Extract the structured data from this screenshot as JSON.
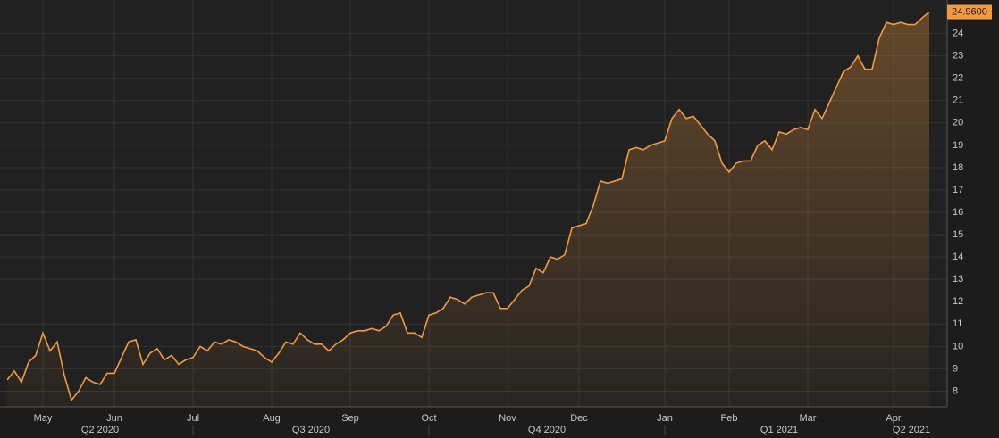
{
  "chart_data": {
    "type": "area",
    "categories": [
      null,
      null,
      null,
      null,
      null,
      "May",
      null,
      null,
      null,
      null,
      null,
      null,
      null,
      null,
      null,
      "Jun",
      null,
      null,
      null,
      null,
      null,
      null,
      null,
      null,
      null,
      null,
      "Jul",
      null,
      null,
      null,
      null,
      null,
      null,
      null,
      null,
      null,
      null,
      "Aug",
      null,
      null,
      null,
      null,
      null,
      null,
      null,
      null,
      null,
      null,
      "Sep",
      null,
      null,
      null,
      null,
      null,
      null,
      null,
      null,
      null,
      null,
      "Oct",
      null,
      null,
      null,
      null,
      null,
      null,
      null,
      null,
      null,
      null,
      "Nov",
      null,
      null,
      null,
      null,
      null,
      null,
      null,
      null,
      null,
      "Dec",
      null,
      null,
      null,
      null,
      null,
      null,
      null,
      null,
      null,
      null,
      null,
      "Jan",
      null,
      null,
      null,
      null,
      null,
      null,
      null,
      null,
      "Feb",
      null,
      null,
      null,
      null,
      null,
      null,
      null,
      null,
      null,
      null,
      "Mar",
      null,
      null,
      null,
      null,
      null,
      null,
      null,
      null,
      null,
      null,
      null,
      "Apr",
      null,
      null,
      null,
      null,
      null
    ],
    "quarters": [
      "Q2 2020",
      "Q3 2020",
      "Q4 2020",
      "Q1 2021",
      "Q2 2021"
    ],
    "series": [
      {
        "color": "#f39a3e",
        "values": [
          8.5,
          8.9,
          8.4,
          9.3,
          9.6,
          10.6,
          9.8,
          10.2,
          8.7,
          7.6,
          8.0,
          8.6,
          8.4,
          8.3,
          8.8,
          8.8,
          9.5,
          10.2,
          10.3,
          9.2,
          9.7,
          9.9,
          9.4,
          9.6,
          9.2,
          9.4,
          9.5,
          10.0,
          9.8,
          10.2,
          10.1,
          10.3,
          10.2,
          10.0,
          9.9,
          9.8,
          9.5,
          9.3,
          9.7,
          10.2,
          10.1,
          10.6,
          10.3,
          10.1,
          10.1,
          9.8,
          10.1,
          10.3,
          10.6,
          10.7,
          10.7,
          10.8,
          10.7,
          10.9,
          11.4,
          11.5,
          10.6,
          10.6,
          10.4,
          11.4,
          11.5,
          11.7,
          12.2,
          12.1,
          11.9,
          12.2,
          12.3,
          12.4,
          12.4,
          11.7,
          11.7,
          12.1,
          12.5,
          12.7,
          13.5,
          13.3,
          14.0,
          13.9,
          14.1,
          15.3,
          15.4,
          15.5,
          16.3,
          17.4,
          17.3,
          17.4,
          17.5,
          18.8,
          18.9,
          18.8,
          19.0,
          19.1,
          19.2,
          20.2,
          20.6,
          20.2,
          20.3,
          19.9,
          19.5,
          19.2,
          18.2,
          17.8,
          18.2,
          18.3,
          18.3,
          19.0,
          19.2,
          18.8,
          19.6,
          19.5,
          19.7,
          19.8,
          19.7,
          20.6,
          20.2,
          20.9,
          21.6,
          22.3,
          22.5,
          23.0,
          22.4,
          22.4,
          23.8,
          24.5,
          24.4,
          24.5,
          24.4,
          24.4,
          24.7,
          24.96
        ],
        "value_labels": [
          null,
          null,
          null,
          null,
          null,
          null,
          null,
          null,
          null,
          null,
          null,
          null,
          null,
          null,
          null,
          null,
          null,
          null,
          null,
          null,
          null,
          null,
          null,
          null,
          null,
          null,
          null,
          null,
          null,
          null,
          null,
          null,
          null,
          null,
          null,
          null,
          null,
          null,
          null,
          null,
          null,
          null,
          null,
          null,
          null,
          null,
          null,
          null,
          null,
          null,
          null,
          null,
          null,
          null,
          null,
          null,
          null,
          null,
          null,
          null,
          null,
          null,
          null,
          null,
          null,
          null,
          null,
          null,
          null,
          null,
          null,
          null,
          null,
          null,
          null,
          null,
          null,
          null,
          null,
          null,
          null,
          null,
          null,
          null,
          null,
          null,
          null,
          null,
          null,
          null,
          null,
          null,
          null,
          null,
          null,
          null,
          null,
          null,
          null,
          null,
          null,
          null,
          null,
          null,
          null,
          null,
          null,
          null,
          null,
          null,
          null,
          null,
          null,
          null,
          null,
          null,
          null,
          null,
          null,
          null,
          null,
          null,
          null,
          null,
          null,
          null,
          null,
          null,
          null,
          "24.9600"
        ]
      }
    ],
    "ylim": [
      7.3,
      25.5
    ],
    "yticks": [
      8,
      9,
      10,
      11,
      12,
      13,
      14,
      15,
      16,
      17,
      18,
      19,
      20,
      21,
      22,
      23,
      24
    ],
    "grid": true
  }
}
